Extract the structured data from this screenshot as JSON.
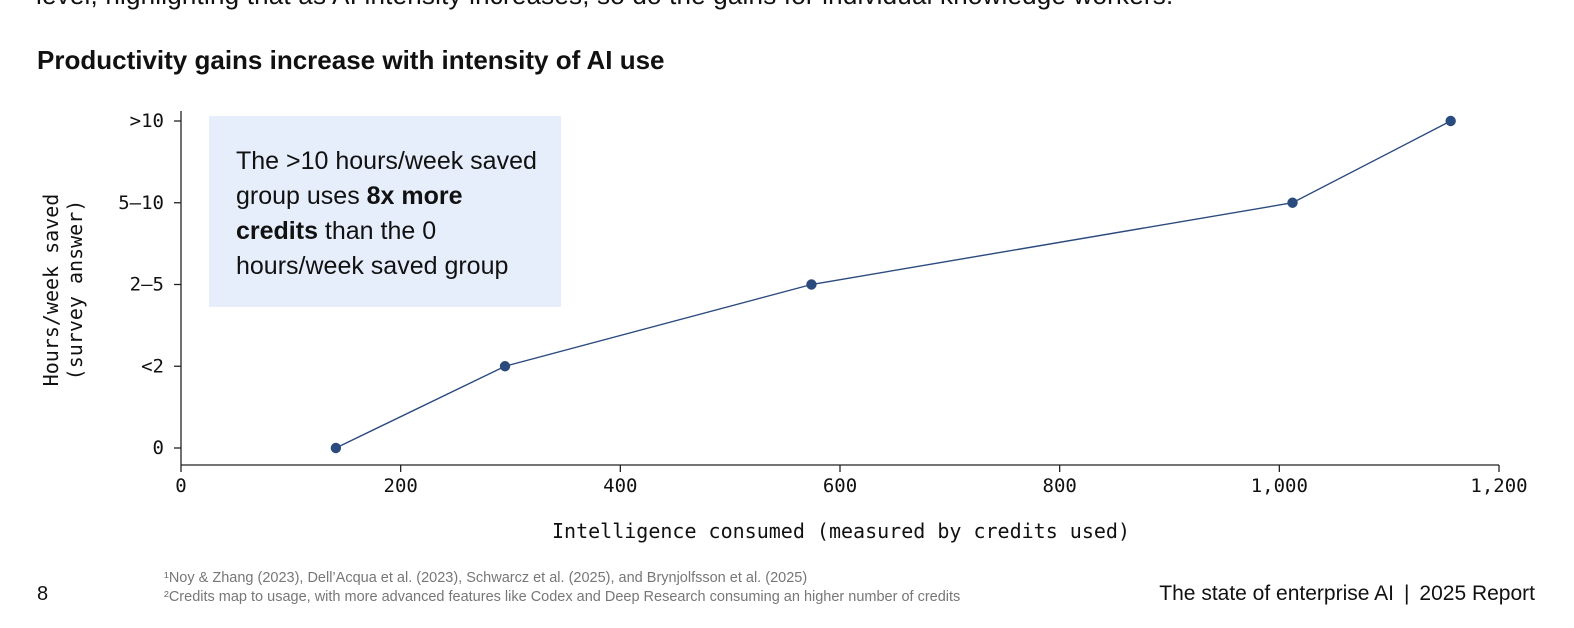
{
  "header": {
    "clipped_text": "level, highlighting that as AI intensity increases, so do the gains for individual knowledge workers."
  },
  "chart_data": {
    "type": "line",
    "title": "Productivity gains increase with intensity of AI use",
    "xlabel": "Intelligence consumed (measured by credits used)",
    "ylabel": [
      "Hours/week saved",
      "(survey answer)"
    ],
    "xlim": [
      0,
      1200
    ],
    "x_ticks": [
      0,
      200,
      400,
      600,
      800,
      1000,
      1200
    ],
    "x_tick_labels": [
      "0",
      "200",
      "400",
      "600",
      "800",
      "1,000",
      "1,200"
    ],
    "y_categories": [
      "0",
      "<2",
      "2–5",
      "5–10",
      ">10"
    ],
    "series": [
      {
        "name": "Hours/week saved",
        "points": [
          {
            "x": 141,
            "y": "0"
          },
          {
            "x": 295,
            "y": "<2"
          },
          {
            "x": 574,
            "y": "2–5"
          },
          {
            "x": 1012,
            "y": "5–10"
          },
          {
            "x": 1156,
            "y": ">10"
          }
        ]
      }
    ],
    "annotation": {
      "before": "The >10 hours/week saved group uses ",
      "bold": "8x more credits",
      "after": " than the 0 hours/week saved group"
    },
    "colors": {
      "line": "#2b4a7e",
      "marker": "#2b4a7e",
      "callout_bg": "#e6edfb"
    }
  },
  "footer": {
    "page_number": "8",
    "footnote_1": "¹Noy & Zhang (2023), Dell’Acqua et al. (2023), Schwarcz et al. (2025), and Brynjolfsson et al. (2025)",
    "footnote_2": "²Credits map to usage, with more advanced features like Codex and Deep Research consuming an higher number of credits",
    "report_title": "The state of enterprise AI",
    "separator": "|",
    "report_year": "2025 Report"
  }
}
